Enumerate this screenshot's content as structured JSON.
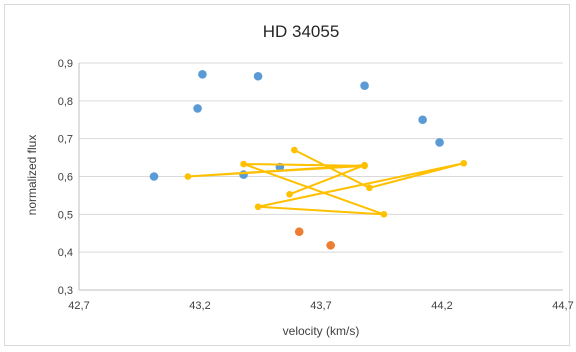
{
  "chart_data": {
    "type": "scatter",
    "title": "HD 34055",
    "xlabel": "velocity (km/s)",
    "ylabel": "normalized flux",
    "xlim": [
      42.7,
      44.7
    ],
    "ylim": [
      0.3,
      0.9
    ],
    "x_ticks": [
      "42,7",
      "43,2",
      "43,7",
      "44,2",
      "44,7"
    ],
    "y_ticks": [
      "0,3",
      "0,4",
      "0,5",
      "0,6",
      "0,7",
      "0,8",
      "0,9"
    ],
    "grid": "horizontal",
    "legend": "none",
    "series": [
      {
        "color": "#5b9bd5",
        "mode": "markers",
        "points": [
          [
            43.01,
            0.6
          ],
          [
            43.19,
            0.78
          ],
          [
            43.21,
            0.87
          ],
          [
            43.38,
            0.605
          ],
          [
            43.44,
            0.865
          ],
          [
            43.53,
            0.625
          ],
          [
            43.88,
            0.84
          ],
          [
            44.12,
            0.75
          ],
          [
            44.19,
            0.69
          ]
        ]
      },
      {
        "color": "#ffc000",
        "mode": "lines+markers",
        "points": [
          [
            43.59,
            0.67
          ],
          [
            43.9,
            0.57
          ],
          [
            44.29,
            0.635
          ],
          [
            43.44,
            0.52
          ],
          [
            43.96,
            0.5
          ],
          [
            43.38,
            0.633
          ],
          [
            43.88,
            0.628
          ],
          [
            43.15,
            0.6
          ],
          [
            43.88,
            0.63
          ],
          [
            43.57,
            0.553
          ]
        ]
      },
      {
        "color": "#ed7d31",
        "mode": "markers",
        "points": [
          [
            43.61,
            0.454
          ],
          [
            43.74,
            0.418
          ]
        ]
      }
    ]
  }
}
